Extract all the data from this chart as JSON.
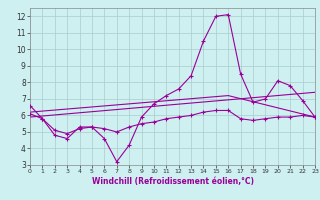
{
  "xlabel": "Windchill (Refroidissement éolien,°C)",
  "xlim": [
    0,
    23
  ],
  "ylim": [
    3,
    12.5
  ],
  "yticks": [
    3,
    4,
    5,
    6,
    7,
    8,
    9,
    10,
    11,
    12
  ],
  "xticks": [
    0,
    1,
    2,
    3,
    4,
    5,
    6,
    7,
    8,
    9,
    10,
    11,
    12,
    13,
    14,
    15,
    16,
    17,
    18,
    19,
    20,
    21,
    22,
    23
  ],
  "bg_color": "#cff0f0",
  "line_color": "#990099",
  "grid_color": "#aacccc",
  "series1_x": [
    0,
    1,
    2,
    3,
    4,
    5,
    6,
    7,
    8,
    9,
    10,
    11,
    12,
    13,
    14,
    15,
    16,
    17,
    18,
    19,
    20,
    21,
    22,
    23
  ],
  "series1_y": [
    6.6,
    5.8,
    4.8,
    4.6,
    5.3,
    5.3,
    4.6,
    3.2,
    4.2,
    5.9,
    6.7,
    7.2,
    7.6,
    8.4,
    10.5,
    12.0,
    12.1,
    8.5,
    6.8,
    7.0,
    8.1,
    7.8,
    6.9,
    5.9
  ],
  "series2_x": [
    0,
    1,
    2,
    3,
    4,
    5,
    6,
    7,
    8,
    9,
    10,
    11,
    12,
    13,
    14,
    15,
    16,
    17,
    18,
    19,
    20,
    21,
    22,
    23
  ],
  "series2_y": [
    6.1,
    5.8,
    5.1,
    4.9,
    5.2,
    5.3,
    5.2,
    5.0,
    5.3,
    5.5,
    5.6,
    5.8,
    5.9,
    6.0,
    6.2,
    6.3,
    6.3,
    5.8,
    5.7,
    5.8,
    5.9,
    5.9,
    6.0,
    5.9
  ],
  "series3_x": [
    0,
    23
  ],
  "series3_y": [
    5.9,
    7.4
  ],
  "series4_x": [
    0,
    16,
    23
  ],
  "series4_y": [
    6.2,
    7.2,
    5.9
  ]
}
